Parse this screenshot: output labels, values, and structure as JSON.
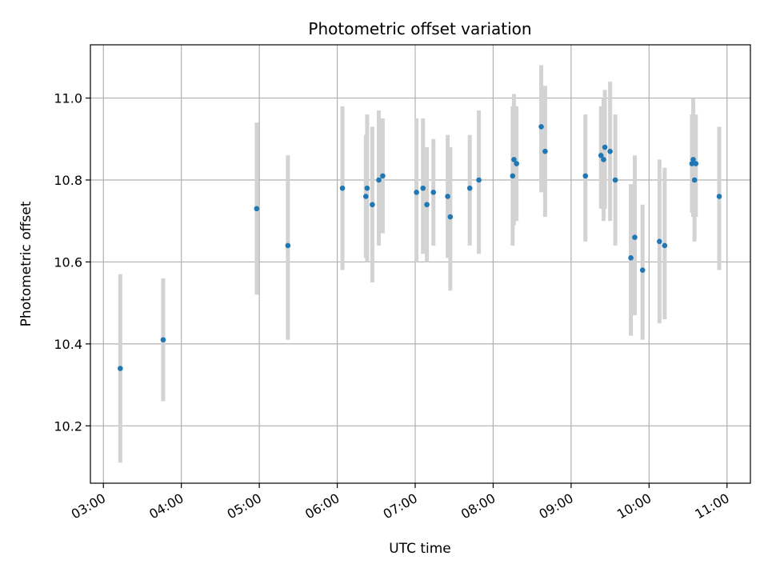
{
  "chart_data": {
    "type": "scatter",
    "title": "Photometric offset variation",
    "xlabel": "UTC time",
    "ylabel": "Photometric offset",
    "x_ticks": [
      "03:00",
      "04:00",
      "05:00",
      "06:00",
      "07:00",
      "08:00",
      "09:00",
      "10:00",
      "11:00"
    ],
    "xlim": [
      "02:50",
      "11:18"
    ],
    "y_ticks": [
      "10.2",
      "10.4",
      "10.6",
      "10.8",
      "11.0"
    ],
    "ylim": [
      10.06,
      11.13
    ],
    "grid": true,
    "colors": {
      "marker": "#1f77b4",
      "errorbar": "#d3d3d3",
      "grid": "#b0b0b0"
    },
    "points": [
      {
        "x": "03:13",
        "y": 10.34,
        "lo": 10.11,
        "hi": 10.57
      },
      {
        "x": "03:46",
        "y": 10.41,
        "lo": 10.26,
        "hi": 10.56
      },
      {
        "x": "04:58",
        "y": 10.73,
        "lo": 10.52,
        "hi": 10.94
      },
      {
        "x": "05:22",
        "y": 10.64,
        "lo": 10.41,
        "hi": 10.86
      },
      {
        "x": "06:04",
        "y": 10.78,
        "lo": 10.58,
        "hi": 10.98
      },
      {
        "x": "06:22",
        "y": 10.76,
        "lo": 10.61,
        "hi": 10.91
      },
      {
        "x": "06:23",
        "y": 10.78,
        "lo": 10.6,
        "hi": 10.96
      },
      {
        "x": "06:27",
        "y": 10.74,
        "lo": 10.55,
        "hi": 10.93
      },
      {
        "x": "06:32",
        "y": 10.8,
        "lo": 10.64,
        "hi": 10.97
      },
      {
        "x": "06:35",
        "y": 10.81,
        "lo": 10.67,
        "hi": 10.95
      },
      {
        "x": "07:01",
        "y": 10.77,
        "lo": 10.6,
        "hi": 10.95
      },
      {
        "x": "07:06",
        "y": 10.78,
        "lo": 10.62,
        "hi": 10.95
      },
      {
        "x": "07:09",
        "y": 10.74,
        "lo": 10.6,
        "hi": 10.88
      },
      {
        "x": "07:14",
        "y": 10.77,
        "lo": 10.64,
        "hi": 10.9
      },
      {
        "x": "07:25",
        "y": 10.76,
        "lo": 10.61,
        "hi": 10.91
      },
      {
        "x": "07:27",
        "y": 10.71,
        "lo": 10.53,
        "hi": 10.88
      },
      {
        "x": "07:42",
        "y": 10.78,
        "lo": 10.64,
        "hi": 10.91
      },
      {
        "x": "07:49",
        "y": 10.8,
        "lo": 10.62,
        "hi": 10.97
      },
      {
        "x": "08:15",
        "y": 10.81,
        "lo": 10.64,
        "hi": 10.98
      },
      {
        "x": "08:16",
        "y": 10.85,
        "lo": 10.69,
        "hi": 11.01
      },
      {
        "x": "08:18",
        "y": 10.84,
        "lo": 10.7,
        "hi": 10.98
      },
      {
        "x": "08:37",
        "y": 10.93,
        "lo": 10.77,
        "hi": 11.08
      },
      {
        "x": "08:40",
        "y": 10.87,
        "lo": 10.71,
        "hi": 11.03
      },
      {
        "x": "09:11",
        "y": 10.81,
        "lo": 10.65,
        "hi": 10.96
      },
      {
        "x": "09:23",
        "y": 10.86,
        "lo": 10.73,
        "hi": 10.98
      },
      {
        "x": "09:25",
        "y": 10.85,
        "lo": 10.7,
        "hi": 11.0
      },
      {
        "x": "09:26",
        "y": 10.88,
        "lo": 10.73,
        "hi": 11.02
      },
      {
        "x": "09:30",
        "y": 10.87,
        "lo": 10.7,
        "hi": 11.04
      },
      {
        "x": "09:34",
        "y": 10.8,
        "lo": 10.64,
        "hi": 10.96
      },
      {
        "x": "09:46",
        "y": 10.61,
        "lo": 10.42,
        "hi": 10.79
      },
      {
        "x": "09:49",
        "y": 10.66,
        "lo": 10.47,
        "hi": 10.86
      },
      {
        "x": "09:55",
        "y": 10.58,
        "lo": 10.41,
        "hi": 10.74
      },
      {
        "x": "10:08",
        "y": 10.65,
        "lo": 10.45,
        "hi": 10.85
      },
      {
        "x": "10:12",
        "y": 10.64,
        "lo": 10.46,
        "hi": 10.83
      },
      {
        "x": "10:33",
        "y": 10.84,
        "lo": 10.72,
        "hi": 10.96
      },
      {
        "x": "10:34",
        "y": 10.85,
        "lo": 10.71,
        "hi": 11.0
      },
      {
        "x": "10:35",
        "y": 10.8,
        "lo": 10.65,
        "hi": 10.95
      },
      {
        "x": "10:36",
        "y": 10.84,
        "lo": 10.71,
        "hi": 10.96
      },
      {
        "x": "10:54",
        "y": 10.76,
        "lo": 10.58,
        "hi": 10.93
      }
    ]
  }
}
